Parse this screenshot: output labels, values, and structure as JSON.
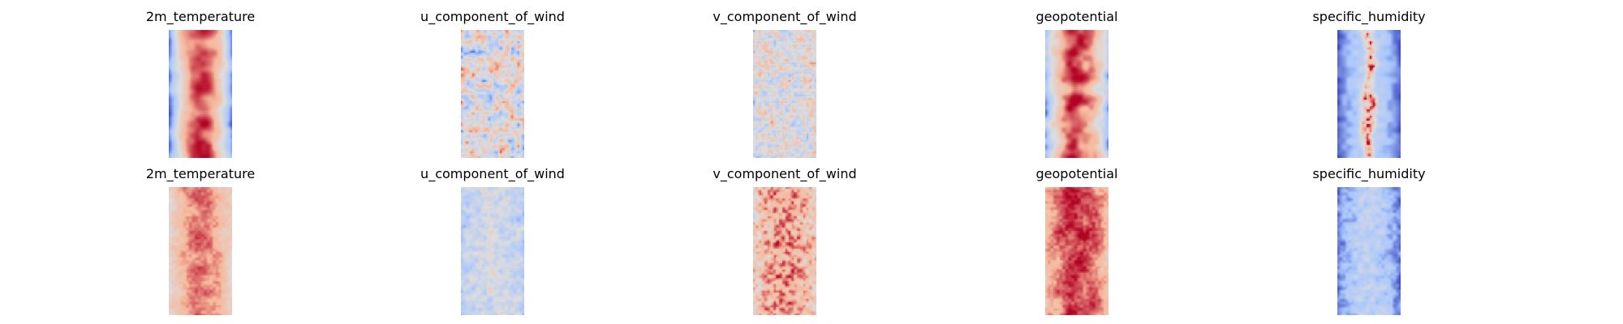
{
  "chart_data": {
    "type": "heatmap",
    "colormap": "coolwarm",
    "colormap_stops": [
      "#3b4cc0",
      "#aac7fd",
      "#dddddd",
      "#f7b89c",
      "#b40426"
    ],
    "axes_visible": false,
    "grid": false,
    "layout": {
      "rows": 2,
      "columns": 5
    },
    "panels": [
      {
        "title": "2m_temperature",
        "row": 0,
        "col": 0
      },
      {
        "title": "u_component_of_wind",
        "row": 0,
        "col": 1
      },
      {
        "title": "v_component_of_wind",
        "row": 0,
        "col": 2
      },
      {
        "title": "geopotential",
        "row": 0,
        "col": 3
      },
      {
        "title": "specific_humidity",
        "row": 0,
        "col": 4
      },
      {
        "title": "2m_temperature",
        "row": 1,
        "col": 0
      },
      {
        "title": "u_component_of_wind",
        "row": 1,
        "col": 1
      },
      {
        "title": "v_component_of_wind",
        "row": 1,
        "col": 2
      },
      {
        "title": "geopotential",
        "row": 1,
        "col": 3
      },
      {
        "title": "specific_humidity",
        "row": 1,
        "col": 4
      }
    ]
  }
}
